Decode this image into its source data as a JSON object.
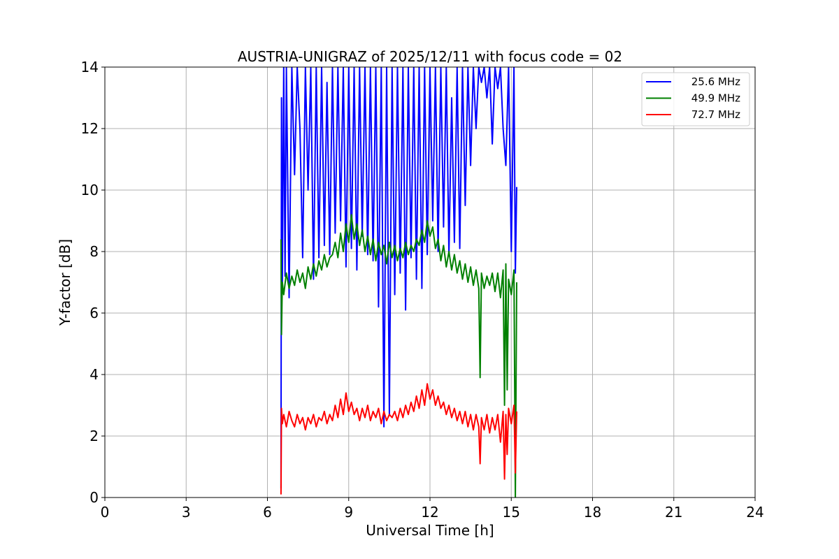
{
  "chart_data": {
    "type": "line",
    "title": "AUSTRIA-UNIGRAZ of 2025/12/11 with focus code = 02",
    "xlabel": "Universal Time [h]",
    "ylabel": "Y-factor [dB]",
    "xlim": [
      0,
      24
    ],
    "ylim": [
      0,
      14
    ],
    "xticks": [
      0,
      3,
      6,
      9,
      12,
      15,
      18,
      21,
      24
    ],
    "yticks": [
      0,
      2,
      4,
      6,
      8,
      10,
      12,
      14
    ],
    "grid": true,
    "legend_position": "top-right",
    "series": [
      {
        "name": "25.6 MHz",
        "color": "#0000ff",
        "x": [
          6.5,
          6.52,
          6.55,
          6.6,
          6.65,
          6.7,
          6.8,
          6.9,
          7.0,
          7.1,
          7.2,
          7.3,
          7.4,
          7.5,
          7.6,
          7.7,
          7.8,
          7.9,
          8.0,
          8.1,
          8.2,
          8.3,
          8.4,
          8.5,
          8.6,
          8.7,
          8.8,
          8.9,
          9.0,
          9.1,
          9.2,
          9.3,
          9.4,
          9.5,
          9.6,
          9.7,
          9.8,
          9.9,
          10.0,
          10.1,
          10.2,
          10.3,
          10.4,
          10.5,
          10.6,
          10.7,
          10.8,
          10.9,
          11.0,
          11.1,
          11.2,
          11.3,
          11.4,
          11.5,
          11.6,
          11.7,
          11.8,
          11.9,
          12.0,
          12.1,
          12.2,
          12.3,
          12.4,
          12.5,
          12.6,
          12.7,
          12.8,
          12.9,
          13.0,
          13.1,
          13.2,
          13.3,
          13.4,
          13.5,
          13.6,
          13.7,
          13.8,
          13.9,
          14.0,
          14.1,
          14.2,
          14.3,
          14.4,
          14.5,
          14.6,
          14.7,
          14.8,
          14.9,
          15.0,
          15.1,
          15.15,
          15.2
        ],
        "y": [
          0.3,
          13.0,
          6.8,
          14.0,
          7.2,
          14.0,
          6.5,
          14.0,
          10.5,
          14.0,
          12.0,
          7.8,
          14.0,
          10.0,
          14.0,
          7.1,
          14.0,
          7.8,
          14.0,
          8.2,
          13.5,
          7.9,
          14.0,
          8.6,
          14.0,
          9.0,
          14.0,
          7.5,
          14.0,
          8.1,
          14.0,
          7.4,
          14.0,
          8.5,
          14.0,
          7.9,
          14.0,
          7.7,
          14.0,
          6.2,
          14.0,
          2.3,
          14.0,
          2.7,
          14.0,
          6.6,
          14.0,
          7.3,
          14.0,
          6.1,
          14.0,
          7.8,
          14.0,
          7.1,
          14.0,
          6.8,
          14.0,
          7.9,
          14.0,
          9.0,
          14.0,
          8.0,
          14.0,
          8.8,
          14.0,
          7.9,
          13.0,
          8.3,
          14.0,
          8.1,
          14.0,
          9.5,
          14.0,
          10.8,
          14.0,
          12.0,
          14.0,
          13.5,
          14.0,
          13.0,
          14.0,
          11.5,
          14.0,
          13.3,
          14.0,
          12.0,
          10.8,
          14.0,
          8.0,
          14.0,
          7.3,
          10.1
        ]
      },
      {
        "name": "49.9 MHz",
        "color": "#008000",
        "x": [
          6.5,
          6.52,
          6.55,
          6.6,
          6.7,
          6.8,
          6.9,
          7.0,
          7.1,
          7.2,
          7.3,
          7.4,
          7.5,
          7.6,
          7.7,
          7.8,
          7.9,
          8.0,
          8.1,
          8.2,
          8.3,
          8.4,
          8.5,
          8.6,
          8.7,
          8.8,
          8.9,
          9.0,
          9.1,
          9.2,
          9.3,
          9.4,
          9.5,
          9.6,
          9.7,
          9.8,
          9.9,
          10.0,
          10.1,
          10.2,
          10.3,
          10.4,
          10.5,
          10.6,
          10.7,
          10.8,
          10.9,
          11.0,
          11.1,
          11.2,
          11.3,
          11.4,
          11.5,
          11.6,
          11.7,
          11.8,
          11.9,
          12.0,
          12.1,
          12.2,
          12.3,
          12.4,
          12.5,
          12.6,
          12.7,
          12.8,
          12.9,
          13.0,
          13.1,
          13.2,
          13.3,
          13.4,
          13.5,
          13.6,
          13.7,
          13.8,
          13.85,
          13.9,
          14.0,
          14.1,
          14.2,
          14.3,
          14.4,
          14.5,
          14.6,
          14.7,
          14.75,
          14.8,
          14.85,
          14.9,
          15.0,
          15.1,
          15.15,
          15.2
        ],
        "y": [
          8.4,
          5.3,
          7.0,
          6.6,
          7.3,
          6.8,
          7.2,
          6.9,
          7.4,
          7.0,
          7.3,
          6.8,
          7.5,
          7.1,
          7.6,
          7.2,
          7.7,
          7.4,
          7.9,
          7.5,
          7.8,
          7.9,
          8.3,
          7.8,
          8.6,
          8.0,
          8.9,
          8.3,
          9.2,
          8.4,
          8.9,
          8.2,
          8.7,
          8.0,
          8.5,
          7.9,
          8.4,
          7.7,
          8.3,
          7.9,
          8.2,
          7.6,
          8.3,
          7.8,
          8.2,
          7.7,
          8.1,
          7.8,
          8.3,
          7.9,
          8.2,
          8.0,
          8.4,
          8.2,
          8.7,
          8.3,
          9.0,
          8.5,
          8.8,
          8.1,
          8.4,
          7.7,
          8.2,
          7.5,
          8.0,
          7.4,
          7.9,
          7.3,
          7.7,
          7.1,
          7.6,
          7.0,
          7.5,
          6.9,
          7.4,
          6.8,
          3.9,
          7.3,
          6.8,
          7.2,
          6.9,
          7.3,
          6.7,
          7.3,
          6.5,
          7.4,
          3.0,
          7.6,
          3.5,
          7.1,
          6.6,
          7.4,
          0.0,
          7.0
        ]
      },
      {
        "name": "72.7 MHz",
        "color": "#ff0000",
        "x": [
          6.5,
          6.52,
          6.55,
          6.6,
          6.7,
          6.8,
          6.9,
          7.0,
          7.1,
          7.2,
          7.3,
          7.4,
          7.5,
          7.6,
          7.7,
          7.8,
          7.9,
          8.0,
          8.1,
          8.2,
          8.3,
          8.4,
          8.5,
          8.6,
          8.7,
          8.8,
          8.9,
          9.0,
          9.1,
          9.2,
          9.3,
          9.4,
          9.5,
          9.6,
          9.7,
          9.8,
          9.9,
          10.0,
          10.1,
          10.2,
          10.3,
          10.4,
          10.5,
          10.6,
          10.7,
          10.8,
          10.9,
          11.0,
          11.1,
          11.2,
          11.3,
          11.4,
          11.5,
          11.6,
          11.7,
          11.8,
          11.9,
          12.0,
          12.1,
          12.2,
          12.3,
          12.4,
          12.5,
          12.6,
          12.7,
          12.8,
          12.9,
          13.0,
          13.1,
          13.2,
          13.3,
          13.4,
          13.5,
          13.6,
          13.7,
          13.8,
          13.85,
          13.9,
          14.0,
          14.1,
          14.2,
          14.3,
          14.4,
          14.5,
          14.6,
          14.7,
          14.75,
          14.8,
          14.85,
          14.9,
          15.0,
          15.1,
          15.15,
          15.2
        ],
        "y": [
          0.1,
          2.9,
          2.4,
          2.7,
          2.3,
          2.8,
          2.5,
          2.3,
          2.7,
          2.4,
          2.6,
          2.2,
          2.6,
          2.4,
          2.7,
          2.3,
          2.6,
          2.5,
          2.8,
          2.4,
          2.7,
          2.5,
          3.0,
          2.6,
          3.2,
          2.7,
          3.4,
          2.8,
          3.1,
          2.7,
          2.9,
          2.5,
          2.9,
          2.6,
          3.0,
          2.5,
          2.8,
          2.6,
          2.9,
          2.4,
          2.8,
          2.5,
          2.7,
          2.6,
          2.8,
          2.5,
          2.9,
          2.6,
          3.0,
          2.7,
          3.1,
          2.8,
          3.3,
          2.9,
          3.5,
          3.0,
          3.7,
          3.2,
          3.5,
          3.0,
          3.3,
          2.9,
          3.1,
          2.7,
          3.0,
          2.6,
          2.9,
          2.5,
          2.8,
          2.4,
          2.8,
          2.3,
          2.7,
          2.2,
          2.7,
          2.3,
          1.1,
          2.6,
          2.2,
          2.7,
          2.1,
          2.6,
          2.2,
          2.7,
          1.8,
          2.8,
          0.6,
          2.7,
          1.4,
          2.9,
          2.4,
          3.0,
          0.8,
          2.8
        ]
      }
    ]
  }
}
